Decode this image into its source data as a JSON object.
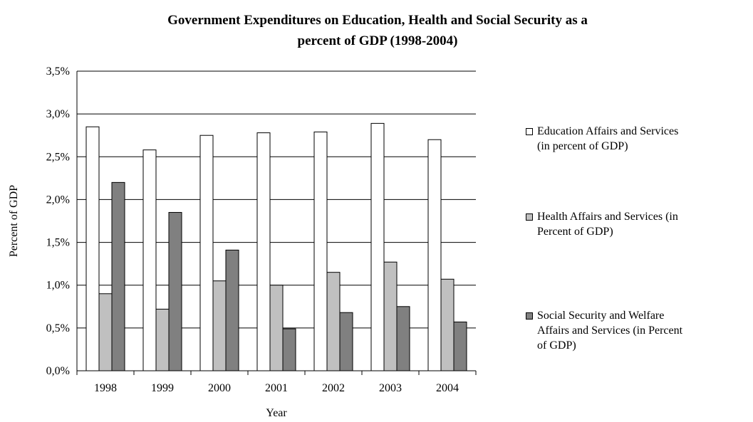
{
  "chart_data": {
    "type": "bar",
    "title": [
      "Government Expenditures on Education, Health and Social Security as a",
      "percent of GDP (1998-2004)"
    ],
    "xlabel": "Year",
    "ylabel": "Percent of GDP",
    "categories": [
      "1998",
      "1999",
      "2000",
      "2001",
      "2002",
      "2003",
      "2004"
    ],
    "yticks": [
      "0,0%",
      "0,5%",
      "1,0%",
      "1,5%",
      "2,0%",
      "2,5%",
      "3,0%",
      "3,5%"
    ],
    "ylim": [
      0,
      3.5
    ],
    "grid": true,
    "legend_position": "right",
    "series": [
      {
        "name": [
          "Education Affairs and Services",
          "(in percent of GDP)"
        ],
        "color": "#ffffff",
        "values": [
          2.85,
          2.58,
          2.75,
          2.78,
          2.79,
          2.89,
          2.7
        ]
      },
      {
        "name": [
          " Health Affairs and Services (in",
          "Percent of GDP)"
        ],
        "color": "#c0c0c0",
        "values": [
          0.9,
          0.72,
          1.05,
          1.0,
          1.15,
          1.27,
          1.07
        ]
      },
      {
        "name": [
          "Social Security and Welfare",
          "Affairs and Services (in Percent",
          "of GDP)"
        ],
        "color": "#808080",
        "values": [
          2.2,
          1.85,
          1.41,
          0.49,
          0.68,
          0.75,
          0.57
        ]
      }
    ]
  }
}
